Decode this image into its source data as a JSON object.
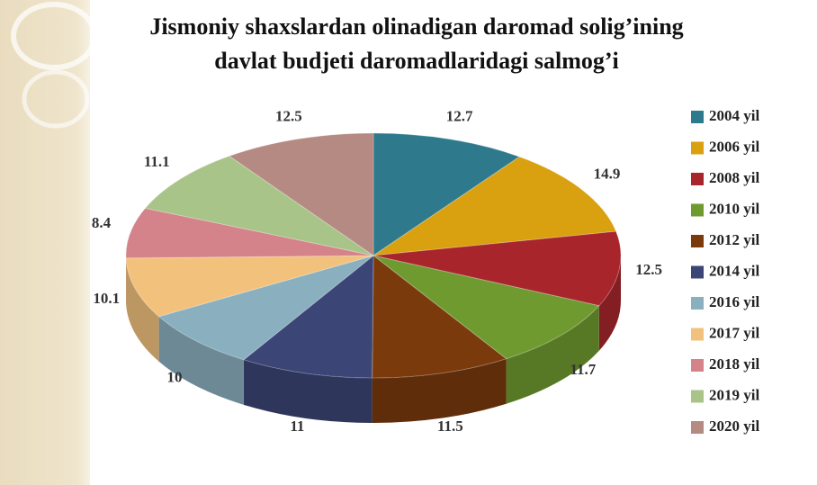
{
  "chart_data": {
    "type": "pie",
    "title": [
      "Jismoniy shaxslardan olinadigan daromad solig’ining",
      "davlat budjeti daromadlaridagi salmog’i"
    ],
    "categories": [
      "2004 yil",
      "2006 yil",
      "2008 yil",
      "2010 yil",
      "2012 yil",
      "2014 yil",
      "2016 yil",
      "2017 yil",
      "2018 yil",
      "2019 yil",
      "2020 yil"
    ],
    "values": [
      12.7,
      14.9,
      12.5,
      11.7,
      11.5,
      11,
      10,
      10.1,
      8.4,
      11.1,
      12.5
    ],
    "colors": [
      "#2e7a8c",
      "#d9a010",
      "#a8262b",
      "#6f9a30",
      "#7a3a0c",
      "#3b4576",
      "#8aafbf",
      "#f2c27d",
      "#d4838a",
      "#a9c488",
      "#b48a82"
    ],
    "legend": "right"
  }
}
